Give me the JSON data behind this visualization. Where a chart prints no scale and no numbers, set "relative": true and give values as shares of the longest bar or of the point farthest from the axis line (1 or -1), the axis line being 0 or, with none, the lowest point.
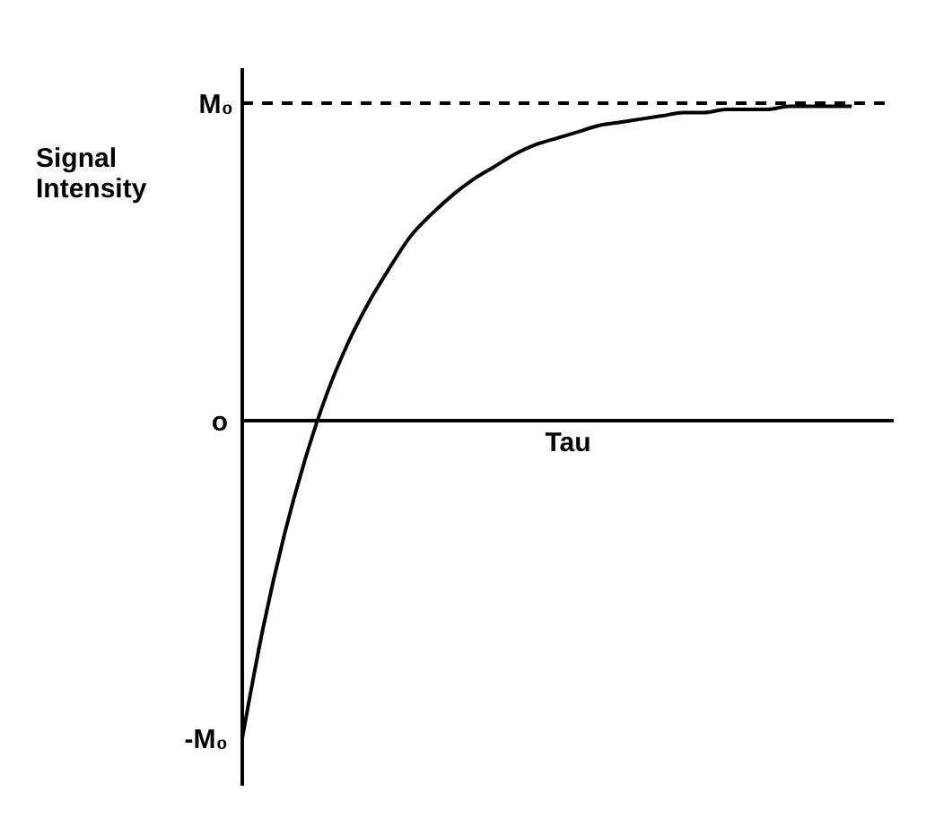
{
  "chart_data": {
    "type": "line",
    "ylabel": "Signal Intensity",
    "xlabel": "Tau",
    "relative": true,
    "categories": [
      null,
      null,
      null,
      null,
      null,
      null,
      null,
      null,
      null,
      null,
      null,
      null,
      null,
      null,
      null,
      null,
      null,
      null,
      null,
      null,
      null,
      null,
      null,
      null,
      null,
      null,
      null,
      null,
      null,
      null
    ],
    "series": [
      {
        "color": "#000000",
        "values": [
          -1,
          -0.65,
          -0.36,
          -0.12,
          0.08,
          0.24,
          0.37,
          0.48,
          0.58,
          0.65,
          0.71,
          0.76,
          0.8,
          0.84,
          0.87,
          0.89,
          0.91,
          0.93,
          0.94,
          0.95,
          0.96,
          0.97,
          0.97,
          0.98,
          0.98,
          0.98,
          0.99,
          0.99,
          0.99,
          0.99
        ]
      }
    ],
    "ref_lines": [
      {
        "axis": "y",
        "value": 1,
        "label": "M₀",
        "color": "#000000",
        "line_style": "dashed"
      }
    ],
    "annotations": [
      "o",
      "-M₀"
    ],
    "line_style": "solid"
  }
}
